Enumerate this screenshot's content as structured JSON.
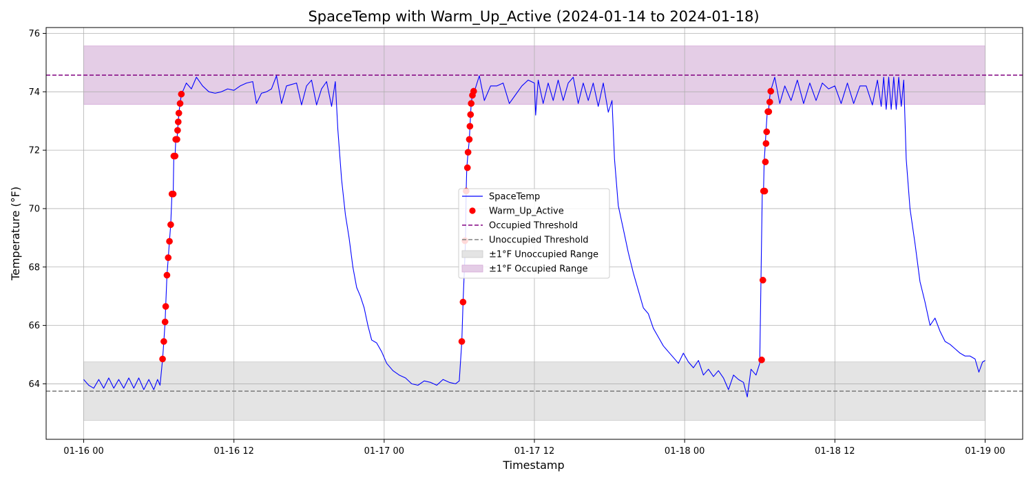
{
  "chart_data": {
    "type": "line",
    "title": "SpaceTemp with Warm_Up_Active (2024-01-14 to 2024-01-18)",
    "xlabel": "Timestamp",
    "ylabel": "Temperature (°F)",
    "x_unit": "hours since 01-16 00",
    "xlim": [
      -3,
      75
    ],
    "ylim": [
      62.1,
      76.2
    ],
    "xticks": [
      {
        "x": 0,
        "label": "01-16 00"
      },
      {
        "x": 12,
        "label": "01-16 12"
      },
      {
        "x": 24,
        "label": "01-17 00"
      },
      {
        "x": 36,
        "label": "01-17 12"
      },
      {
        "x": 48,
        "label": "01-18 00"
      },
      {
        "x": 60,
        "label": "01-18 12"
      },
      {
        "x": 72,
        "label": "01-19 00"
      }
    ],
    "yticks": [
      64,
      66,
      68,
      70,
      72,
      74,
      76
    ],
    "grid": true,
    "legend_placement": "center",
    "occupied_threshold": 74.57,
    "unoccupied_threshold": 63.75,
    "occupied_range": [
      73.57,
      75.57
    ],
    "unoccupied_range": [
      62.75,
      64.75
    ],
    "range_x": [
      0,
      72
    ],
    "colors": {
      "spacetemp": "#0000ff",
      "warm_up": "#ff0000",
      "occupied": "#800080",
      "unoccupied": "#808080",
      "occupied_fill": "#e4cde6",
      "unoccupied_fill": "#e4e4e4"
    },
    "legend": [
      {
        "label": "SpaceTemp",
        "kind": "line",
        "color": "#0000ff"
      },
      {
        "label": "Warm_Up_Active",
        "kind": "marker",
        "color": "#ff0000"
      },
      {
        "label": "Occupied Threshold",
        "kind": "dash",
        "color": "#800080"
      },
      {
        "label": "Unoccupied Threshold",
        "kind": "dash",
        "color": "#808080"
      },
      {
        "label": "±1°F Unoccupied Range",
        "kind": "patch",
        "color": "#e4e4e4"
      },
      {
        "label": "±1°F Occupied Range",
        "kind": "patch",
        "color": "#e4cde6"
      }
    ],
    "series": [
      {
        "name": "SpaceTemp",
        "points": [
          [
            0,
            64.15
          ],
          [
            0.4,
            63.95
          ],
          [
            0.8,
            63.85
          ],
          [
            1.2,
            64.15
          ],
          [
            1.6,
            63.85
          ],
          [
            2.0,
            64.2
          ],
          [
            2.4,
            63.85
          ],
          [
            2.8,
            64.15
          ],
          [
            3.2,
            63.85
          ],
          [
            3.6,
            64.2
          ],
          [
            4.0,
            63.85
          ],
          [
            4.4,
            64.2
          ],
          [
            4.8,
            63.8
          ],
          [
            5.2,
            64.15
          ],
          [
            5.6,
            63.8
          ],
          [
            5.9,
            64.15
          ],
          [
            6.1,
            63.95
          ],
          [
            6.3,
            64.85
          ],
          [
            6.4,
            65.45
          ],
          [
            6.5,
            66.1
          ],
          [
            6.55,
            66.65
          ],
          [
            6.65,
            67.7
          ],
          [
            6.75,
            68.3
          ],
          [
            6.85,
            68.9
          ],
          [
            6.95,
            69.45
          ],
          [
            7.05,
            70.5
          ],
          [
            7.15,
            70.5
          ],
          [
            7.2,
            71.8
          ],
          [
            7.3,
            71.8
          ],
          [
            7.35,
            72.35
          ],
          [
            7.45,
            72.35
          ],
          [
            7.5,
            72.7
          ],
          [
            7.55,
            72.95
          ],
          [
            7.6,
            73.25
          ],
          [
            7.7,
            73.6
          ],
          [
            7.8,
            73.9
          ],
          [
            8.2,
            74.3
          ],
          [
            8.6,
            74.1
          ],
          [
            9.0,
            74.5
          ],
          [
            9.5,
            74.2
          ],
          [
            10,
            74.0
          ],
          [
            10.5,
            73.95
          ],
          [
            11,
            74.0
          ],
          [
            11.5,
            74.1
          ],
          [
            12,
            74.05
          ],
          [
            12.5,
            74.2
          ],
          [
            13,
            74.3
          ],
          [
            13.5,
            74.35
          ],
          [
            13.8,
            73.6
          ],
          [
            14.2,
            73.95
          ],
          [
            14.6,
            74.0
          ],
          [
            15.0,
            74.1
          ],
          [
            15.4,
            74.55
          ],
          [
            15.8,
            73.6
          ],
          [
            16.2,
            74.2
          ],
          [
            16.6,
            74.25
          ],
          [
            17.0,
            74.3
          ],
          [
            17.4,
            73.55
          ],
          [
            17.8,
            74.2
          ],
          [
            18.2,
            74.4
          ],
          [
            18.6,
            73.55
          ],
          [
            19.0,
            74.1
          ],
          [
            19.4,
            74.35
          ],
          [
            19.8,
            73.5
          ],
          [
            20.1,
            74.35
          ],
          [
            20.3,
            72.7
          ],
          [
            20.6,
            71.0
          ],
          [
            20.9,
            69.8
          ],
          [
            21.2,
            69.0
          ],
          [
            21.5,
            68.0
          ],
          [
            21.8,
            67.3
          ],
          [
            22.1,
            67.0
          ],
          [
            22.4,
            66.6
          ],
          [
            22.7,
            66.0
          ],
          [
            23.0,
            65.5
          ],
          [
            23.4,
            65.4
          ],
          [
            23.8,
            65.1
          ],
          [
            24.2,
            64.7
          ],
          [
            24.7,
            64.45
          ],
          [
            25.2,
            64.3
          ],
          [
            25.7,
            64.2
          ],
          [
            26.2,
            64.0
          ],
          [
            26.7,
            63.95
          ],
          [
            27.2,
            64.1
          ],
          [
            27.7,
            64.05
          ],
          [
            28.2,
            63.95
          ],
          [
            28.7,
            64.15
          ],
          [
            29.2,
            64.05
          ],
          [
            29.7,
            64.0
          ],
          [
            30.0,
            64.1
          ],
          [
            30.2,
            65.45
          ],
          [
            30.3,
            66.8
          ],
          [
            30.5,
            68.9
          ],
          [
            30.55,
            70.6
          ],
          [
            30.6,
            71.4
          ],
          [
            30.7,
            71.9
          ],
          [
            30.8,
            72.35
          ],
          [
            30.85,
            72.8
          ],
          [
            30.9,
            73.2
          ],
          [
            30.95,
            73.6
          ],
          [
            31.05,
            73.9
          ],
          [
            31.2,
            74.0
          ],
          [
            31.6,
            74.55
          ],
          [
            32.0,
            73.7
          ],
          [
            32.5,
            74.2
          ],
          [
            33.0,
            74.2
          ],
          [
            33.5,
            74.3
          ],
          [
            34.0,
            73.6
          ],
          [
            34.5,
            73.9
          ],
          [
            35.0,
            74.2
          ],
          [
            35.5,
            74.4
          ],
          [
            36.0,
            74.3
          ],
          [
            36.1,
            73.2
          ],
          [
            36.3,
            74.4
          ],
          [
            36.7,
            73.6
          ],
          [
            37.1,
            74.3
          ],
          [
            37.5,
            73.7
          ],
          [
            37.9,
            74.4
          ],
          [
            38.3,
            73.7
          ],
          [
            38.7,
            74.3
          ],
          [
            39.1,
            74.5
          ],
          [
            39.5,
            73.6
          ],
          [
            39.9,
            74.3
          ],
          [
            40.3,
            73.7
          ],
          [
            40.7,
            74.3
          ],
          [
            41.1,
            73.5
          ],
          [
            41.5,
            74.3
          ],
          [
            41.9,
            73.3
          ],
          [
            42.2,
            73.7
          ],
          [
            42.4,
            71.7
          ],
          [
            42.7,
            70.1
          ],
          [
            43.1,
            69.3
          ],
          [
            43.5,
            68.5
          ],
          [
            43.9,
            67.8
          ],
          [
            44.3,
            67.2
          ],
          [
            44.7,
            66.6
          ],
          [
            45.1,
            66.4
          ],
          [
            45.5,
            65.9
          ],
          [
            45.9,
            65.6
          ],
          [
            46.3,
            65.3
          ],
          [
            46.7,
            65.1
          ],
          [
            47.1,
            64.9
          ],
          [
            47.5,
            64.7
          ],
          [
            47.9,
            65.05
          ],
          [
            48.3,
            64.75
          ],
          [
            48.7,
            64.55
          ],
          [
            49.1,
            64.8
          ],
          [
            49.5,
            64.3
          ],
          [
            49.9,
            64.5
          ],
          [
            50.3,
            64.25
          ],
          [
            50.7,
            64.45
          ],
          [
            51.1,
            64.2
          ],
          [
            51.5,
            63.8
          ],
          [
            51.9,
            64.3
          ],
          [
            52.3,
            64.15
          ],
          [
            52.7,
            64.05
          ],
          [
            53.0,
            63.55
          ],
          [
            53.3,
            64.5
          ],
          [
            53.7,
            64.3
          ],
          [
            54.0,
            64.7
          ],
          [
            54.1,
            67.55
          ],
          [
            54.2,
            70.6
          ],
          [
            54.3,
            70.6
          ],
          [
            54.35,
            71.6
          ],
          [
            54.45,
            72.25
          ],
          [
            54.5,
            72.65
          ],
          [
            54.6,
            73.3
          ],
          [
            54.7,
            73.3
          ],
          [
            54.75,
            73.65
          ],
          [
            54.85,
            74.0
          ],
          [
            55.2,
            74.5
          ],
          [
            55.6,
            73.6
          ],
          [
            56.0,
            74.2
          ],
          [
            56.5,
            73.7
          ],
          [
            57.0,
            74.4
          ],
          [
            57.5,
            73.6
          ],
          [
            58.0,
            74.3
          ],
          [
            58.5,
            73.7
          ],
          [
            59.0,
            74.3
          ],
          [
            59.5,
            74.1
          ],
          [
            60.0,
            74.2
          ],
          [
            60.5,
            73.6
          ],
          [
            61.0,
            74.3
          ],
          [
            61.5,
            73.6
          ],
          [
            62.0,
            74.2
          ],
          [
            62.5,
            74.2
          ],
          [
            63.0,
            73.55
          ],
          [
            63.4,
            74.4
          ],
          [
            63.7,
            73.5
          ],
          [
            63.9,
            74.5
          ],
          [
            64.1,
            73.4
          ],
          [
            64.3,
            74.5
          ],
          [
            64.5,
            73.4
          ],
          [
            64.7,
            74.5
          ],
          [
            64.9,
            73.4
          ],
          [
            65.1,
            74.5
          ],
          [
            65.3,
            73.5
          ],
          [
            65.5,
            74.4
          ],
          [
            65.7,
            71.7
          ],
          [
            66.0,
            70.0
          ],
          [
            66.4,
            68.8
          ],
          [
            66.8,
            67.5
          ],
          [
            67.2,
            66.8
          ],
          [
            67.6,
            66.0
          ],
          [
            68.0,
            66.25
          ],
          [
            68.4,
            65.8
          ],
          [
            68.8,
            65.45
          ],
          [
            69.2,
            65.35
          ],
          [
            69.6,
            65.2
          ],
          [
            70.0,
            65.05
          ],
          [
            70.4,
            64.95
          ],
          [
            70.8,
            64.95
          ],
          [
            71.2,
            64.85
          ],
          [
            71.5,
            64.4
          ],
          [
            71.8,
            64.75
          ],
          [
            72.0,
            64.8
          ]
        ]
      },
      {
        "name": "Warm_Up_Active",
        "points": [
          [
            6.3,
            64.85
          ],
          [
            6.4,
            65.45
          ],
          [
            6.5,
            66.12
          ],
          [
            6.55,
            66.65
          ],
          [
            6.65,
            67.72
          ],
          [
            6.75,
            68.32
          ],
          [
            6.85,
            68.88
          ],
          [
            6.95,
            69.45
          ],
          [
            7.05,
            70.5
          ],
          [
            7.15,
            70.5
          ],
          [
            7.2,
            71.8
          ],
          [
            7.3,
            71.8
          ],
          [
            7.35,
            72.37
          ],
          [
            7.45,
            72.37
          ],
          [
            7.5,
            72.68
          ],
          [
            7.55,
            72.97
          ],
          [
            7.6,
            73.27
          ],
          [
            7.7,
            73.6
          ],
          [
            7.8,
            73.92
          ],
          [
            30.2,
            65.45
          ],
          [
            30.3,
            66.8
          ],
          [
            30.45,
            68.9
          ],
          [
            30.55,
            70.6
          ],
          [
            30.65,
            71.4
          ],
          [
            30.7,
            71.93
          ],
          [
            30.8,
            72.37
          ],
          [
            30.85,
            72.82
          ],
          [
            30.9,
            73.22
          ],
          [
            30.95,
            73.6
          ],
          [
            31.05,
            73.88
          ],
          [
            31.15,
            74.02
          ],
          [
            54.15,
            64.82
          ],
          [
            54.25,
            67.55
          ],
          [
            54.3,
            70.6
          ],
          [
            54.4,
            70.6
          ],
          [
            54.45,
            71.6
          ],
          [
            54.5,
            72.23
          ],
          [
            54.55,
            72.63
          ],
          [
            54.65,
            73.32
          ],
          [
            54.72,
            73.32
          ],
          [
            54.8,
            73.65
          ],
          [
            54.88,
            74.02
          ]
        ]
      }
    ]
  }
}
